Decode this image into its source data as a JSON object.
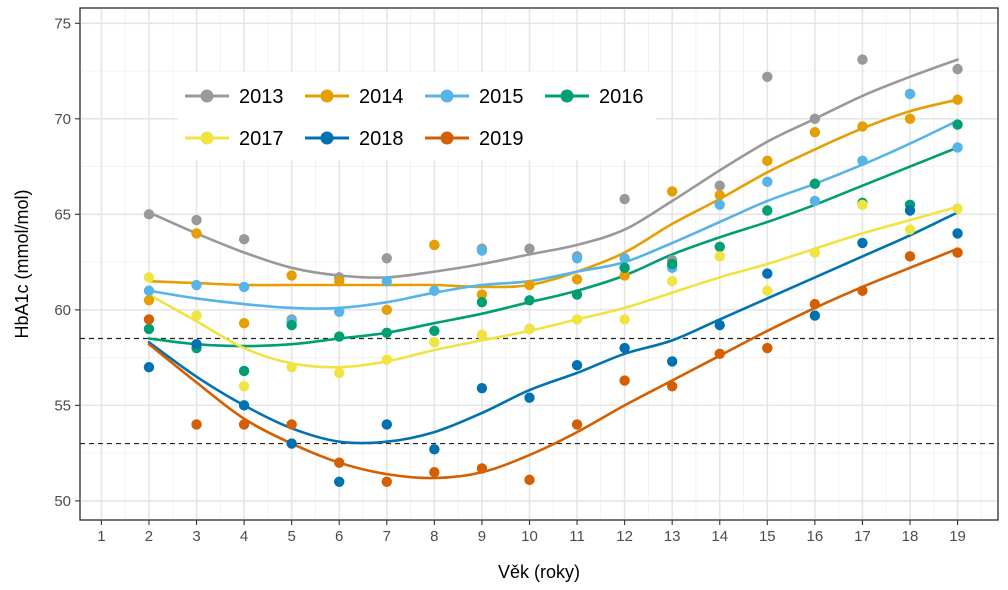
{
  "chart_data": {
    "type": "line",
    "title": "",
    "xlabel": "Věk (roky)",
    "ylabel": "HbA1c (mmol/mol)",
    "xlim": [
      0.55,
      19.85
    ],
    "ylim": [
      49,
      75.8
    ],
    "x_ticks": [
      1,
      2,
      3,
      4,
      5,
      6,
      7,
      8,
      9,
      10,
      11,
      12,
      13,
      14,
      15,
      16,
      17,
      18,
      19
    ],
    "y_ticks": [
      50,
      55,
      60,
      65,
      70,
      75
    ],
    "reference_lines": [
      53,
      58.5
    ],
    "legend_position": "top-left",
    "series": [
      {
        "name": "2013",
        "color": "#999999",
        "points": [
          [
            2,
            65
          ],
          [
            3,
            64.7
          ],
          [
            4,
            63.7
          ],
          [
            5,
            59.5
          ],
          [
            6,
            61.7
          ],
          [
            7,
            62.7
          ],
          [
            8,
            63.4
          ],
          [
            9,
            63.2
          ],
          [
            10,
            63.2
          ],
          [
            11,
            62.8
          ],
          [
            12,
            65.8
          ],
          [
            13,
            62.6
          ],
          [
            14,
            66.5
          ],
          [
            15,
            72.2
          ],
          [
            16,
            70
          ],
          [
            17,
            73.1
          ],
          [
            18,
            71.3
          ],
          [
            19,
            72.6
          ]
        ],
        "smooth": [
          [
            2,
            65.1
          ],
          [
            3,
            64
          ],
          [
            4,
            63
          ],
          [
            5,
            62.2
          ],
          [
            6,
            61.8
          ],
          [
            7,
            61.7
          ],
          [
            8,
            62
          ],
          [
            9,
            62.4
          ],
          [
            10,
            62.9
          ],
          [
            11,
            63.4
          ],
          [
            12,
            64.2
          ],
          [
            13,
            65.7
          ],
          [
            14,
            67.3
          ],
          [
            15,
            68.8
          ],
          [
            16,
            70
          ],
          [
            17,
            71.2
          ],
          [
            18,
            72.2
          ],
          [
            19,
            73.1
          ]
        ]
      },
      {
        "name": "2014",
        "color": "#E69F00",
        "points": [
          [
            2,
            60.5
          ],
          [
            3,
            64
          ],
          [
            4,
            59.3
          ],
          [
            5,
            61.8
          ],
          [
            6,
            61.5
          ],
          [
            7,
            60
          ],
          [
            8,
            63.4
          ],
          [
            9,
            60.8
          ],
          [
            10,
            61.3
          ],
          [
            11,
            61.6
          ],
          [
            12,
            61.8
          ],
          [
            13,
            66.2
          ],
          [
            14,
            66
          ],
          [
            15,
            67.8
          ],
          [
            16,
            69.3
          ],
          [
            17,
            69.6
          ],
          [
            18,
            70
          ],
          [
            19,
            71
          ]
        ],
        "smooth": [
          [
            2,
            61.5
          ],
          [
            3,
            61.4
          ],
          [
            4,
            61.3
          ],
          [
            5,
            61.3
          ],
          [
            6,
            61.3
          ],
          [
            7,
            61.3
          ],
          [
            8,
            61.3
          ],
          [
            9,
            61.2
          ],
          [
            10,
            61.3
          ],
          [
            11,
            62
          ],
          [
            12,
            63
          ],
          [
            13,
            64.5
          ],
          [
            14,
            65.8
          ],
          [
            15,
            67.2
          ],
          [
            16,
            68.4
          ],
          [
            17,
            69.5
          ],
          [
            18,
            70.4
          ],
          [
            19,
            71
          ]
        ]
      },
      {
        "name": "2015",
        "color": "#56B4E9",
        "points": [
          [
            2,
            61
          ],
          [
            3,
            61.3
          ],
          [
            4,
            61.2
          ],
          [
            5,
            59.4
          ],
          [
            6,
            59.9
          ],
          [
            7,
            61.5
          ],
          [
            8,
            61
          ],
          [
            9,
            63.1
          ],
          [
            10,
            59
          ],
          [
            11,
            62.7
          ],
          [
            12,
            62.7
          ],
          [
            13,
            62.2
          ],
          [
            14,
            65.5
          ],
          [
            15,
            66.7
          ],
          [
            16,
            65.7
          ],
          [
            17,
            67.8
          ],
          [
            18,
            71.3
          ],
          [
            19,
            68.5
          ]
        ],
        "smooth": [
          [
            2,
            61
          ],
          [
            3,
            60.6
          ],
          [
            4,
            60.3
          ],
          [
            5,
            60.1
          ],
          [
            6,
            60.1
          ],
          [
            7,
            60.4
          ],
          [
            8,
            60.9
          ],
          [
            9,
            61.3
          ],
          [
            10,
            61.5
          ],
          [
            11,
            62
          ],
          [
            12,
            62.5
          ],
          [
            13,
            63.5
          ],
          [
            14,
            64.6
          ],
          [
            15,
            65.7
          ],
          [
            16,
            66.6
          ],
          [
            17,
            67.6
          ],
          [
            18,
            68.7
          ],
          [
            19,
            69.9
          ]
        ]
      },
      {
        "name": "2016",
        "color": "#009E73",
        "points": [
          [
            2,
            59
          ],
          [
            3,
            58
          ],
          [
            4,
            56.8
          ],
          [
            5,
            59.2
          ],
          [
            6,
            58.6
          ],
          [
            7,
            58.8
          ],
          [
            8,
            58.9
          ],
          [
            9,
            60.4
          ],
          [
            10,
            60.5
          ],
          [
            11,
            60.8
          ],
          [
            12,
            62.2
          ],
          [
            13,
            62.4
          ],
          [
            14,
            63.3
          ],
          [
            15,
            65.2
          ],
          [
            16,
            66.6
          ],
          [
            17,
            65.6
          ],
          [
            18,
            65.5
          ],
          [
            19,
            69.7
          ]
        ],
        "smooth": [
          [
            2,
            58.5
          ],
          [
            3,
            58.2
          ],
          [
            4,
            58.1
          ],
          [
            5,
            58.2
          ],
          [
            6,
            58.5
          ],
          [
            7,
            58.8
          ],
          [
            8,
            59.3
          ],
          [
            9,
            59.8
          ],
          [
            10,
            60.4
          ],
          [
            11,
            61
          ],
          [
            12,
            61.8
          ],
          [
            13,
            62.9
          ],
          [
            14,
            63.8
          ],
          [
            15,
            64.6
          ],
          [
            16,
            65.5
          ],
          [
            17,
            66.5
          ],
          [
            18,
            67.5
          ],
          [
            19,
            68.5
          ]
        ]
      },
      {
        "name": "2017",
        "color": "#F0E442",
        "points": [
          [
            2,
            61.7
          ],
          [
            3,
            59.7
          ],
          [
            4,
            56
          ],
          [
            5,
            57
          ],
          [
            6,
            56.7
          ],
          [
            7,
            57.4
          ],
          [
            8,
            58.3
          ],
          [
            9,
            58.7
          ],
          [
            10,
            59
          ],
          [
            11,
            59.5
          ],
          [
            12,
            59.5
          ],
          [
            13,
            61.5
          ],
          [
            14,
            62.8
          ],
          [
            15,
            61
          ],
          [
            16,
            63
          ],
          [
            17,
            65.5
          ],
          [
            18,
            64.2
          ],
          [
            19,
            65.3
          ]
        ],
        "smooth": [
          [
            2,
            60.8
          ],
          [
            3,
            59.4
          ],
          [
            4,
            58
          ],
          [
            5,
            57.2
          ],
          [
            6,
            57
          ],
          [
            7,
            57.3
          ],
          [
            8,
            57.9
          ],
          [
            9,
            58.4
          ],
          [
            10,
            58.9
          ],
          [
            11,
            59.5
          ],
          [
            12,
            60.1
          ],
          [
            13,
            60.9
          ],
          [
            14,
            61.7
          ],
          [
            15,
            62.4
          ],
          [
            16,
            63.2
          ],
          [
            17,
            64
          ],
          [
            18,
            64.7
          ],
          [
            19,
            65.4
          ]
        ]
      },
      {
        "name": "2018",
        "color": "#0072B2",
        "points": [
          [
            2,
            57
          ],
          [
            3,
            58.2
          ],
          [
            4,
            55
          ],
          [
            5,
            53
          ],
          [
            6,
            51
          ],
          [
            7,
            54
          ],
          [
            8,
            52.7
          ],
          [
            9,
            55.9
          ],
          [
            10,
            55.4
          ],
          [
            11,
            57.1
          ],
          [
            12,
            58
          ],
          [
            13,
            57.3
          ],
          [
            14,
            59.2
          ],
          [
            15,
            61.9
          ],
          [
            16,
            59.7
          ],
          [
            17,
            63.5
          ],
          [
            18,
            65.2
          ],
          [
            19,
            64
          ]
        ],
        "smooth": [
          [
            2,
            58.3
          ],
          [
            3,
            56.5
          ],
          [
            4,
            55
          ],
          [
            5,
            53.8
          ],
          [
            6,
            53.1
          ],
          [
            7,
            53.1
          ],
          [
            8,
            53.6
          ],
          [
            9,
            54.6
          ],
          [
            10,
            55.8
          ],
          [
            11,
            56.7
          ],
          [
            12,
            57.7
          ],
          [
            13,
            58.4
          ],
          [
            14,
            59.5
          ],
          [
            15,
            60.6
          ],
          [
            16,
            61.7
          ],
          [
            17,
            62.8
          ],
          [
            18,
            63.9
          ],
          [
            19,
            65.1
          ]
        ]
      },
      {
        "name": "2019",
        "color": "#D55E00",
        "points": [
          [
            2,
            59.5
          ],
          [
            3,
            54
          ],
          [
            4,
            54
          ],
          [
            5,
            54
          ],
          [
            6,
            52
          ],
          [
            7,
            51
          ],
          [
            8,
            51.5
          ],
          [
            9,
            51.7
          ],
          [
            10,
            51.1
          ],
          [
            11,
            54
          ],
          [
            12,
            56.3
          ],
          [
            13,
            56
          ],
          [
            14,
            57.7
          ],
          [
            15,
            58
          ],
          [
            16,
            60.3
          ],
          [
            17,
            61
          ],
          [
            18,
            62.8
          ],
          [
            19,
            63
          ]
        ],
        "smooth": [
          [
            2,
            58.2
          ],
          [
            3,
            56.2
          ],
          [
            4,
            54.3
          ],
          [
            5,
            53
          ],
          [
            6,
            52
          ],
          [
            7,
            51.4
          ],
          [
            8,
            51.2
          ],
          [
            9,
            51.5
          ],
          [
            10,
            52.4
          ],
          [
            11,
            53.6
          ],
          [
            12,
            55
          ],
          [
            13,
            56.3
          ],
          [
            14,
            57.6
          ],
          [
            15,
            58.9
          ],
          [
            16,
            60.1
          ],
          [
            17,
            61.2
          ],
          [
            18,
            62.2
          ],
          [
            19,
            63.2
          ]
        ]
      }
    ]
  }
}
